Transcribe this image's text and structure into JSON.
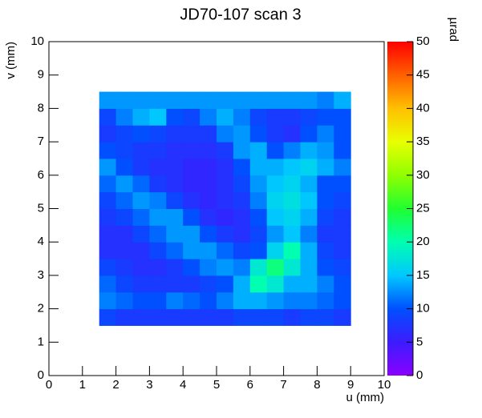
{
  "chart_data": {
    "type": "heatmap",
    "title": "JD70-107 scan 3",
    "x_label": "u (mm)",
    "y_label": "v (mm)",
    "z_label": "µrad",
    "xlim": [
      0,
      10
    ],
    "xticks": [
      0,
      1,
      2,
      3,
      4,
      5,
      6,
      7,
      8,
      9,
      10
    ],
    "ylim": [
      0,
      10
    ],
    "yticks": [
      0,
      1,
      2,
      3,
      4,
      5,
      6,
      7,
      8,
      9,
      10
    ],
    "zlim": [
      0,
      50
    ],
    "zticks": [
      0,
      5,
      10,
      15,
      20,
      25,
      30,
      35,
      40,
      45,
      50
    ],
    "palette": [
      "#8a00ff",
      "#3c1cff",
      "#0050ff",
      "#00c8ff",
      "#00ffb0",
      "#20ff30",
      "#90ff00",
      "#e8ff00",
      "#ffc000",
      "#ff6000",
      "#ff0000"
    ],
    "xbins": [
      1.5,
      2.0,
      2.5,
      3.0,
      3.5,
      4.0,
      4.5,
      5.0,
      5.5,
      6.0,
      6.5,
      7.0,
      7.5,
      8.0,
      8.5,
      9.0
    ],
    "ybins": [
      1.5,
      2.0,
      2.5,
      3.0,
      3.5,
      4.0,
      4.5,
      5.0,
      5.5,
      6.0,
      6.5,
      7.0,
      7.5,
      8.0,
      8.5
    ],
    "z": [
      [
        9,
        8,
        8,
        8,
        8,
        8,
        8,
        8,
        9,
        9,
        9,
        8,
        9,
        9,
        8
      ],
      [
        12,
        11,
        10,
        10,
        12,
        11,
        10,
        12,
        14,
        14,
        13,
        12,
        12,
        11,
        10
      ],
      [
        11,
        9,
        8,
        8,
        8,
        8,
        9,
        10,
        14,
        20,
        18,
        14,
        14,
        12,
        10
      ],
      [
        9,
        8,
        7,
        7,
        8,
        10,
        12,
        13,
        12,
        18,
        22,
        18,
        14,
        10,
        9
      ],
      [
        7,
        7,
        7,
        9,
        11,
        13,
        13,
        11,
        9,
        10,
        16,
        20,
        14,
        9,
        8
      ],
      [
        7,
        7,
        9,
        11,
        13,
        13,
        10,
        8,
        7,
        9,
        13,
        15,
        12,
        8,
        8
      ],
      [
        8,
        9,
        11,
        13,
        13,
        10,
        7,
        6,
        7,
        10,
        15,
        16,
        14,
        9,
        8
      ],
      [
        9,
        11,
        13,
        12,
        9,
        7,
        6,
        7,
        8,
        12,
        16,
        17,
        15,
        10,
        9
      ],
      [
        11,
        13,
        11,
        8,
        7,
        6,
        6,
        7,
        9,
        13,
        15,
        16,
        14,
        10,
        10
      ],
      [
        13,
        10,
        8,
        7,
        7,
        6,
        6,
        7,
        10,
        14,
        14,
        15,
        16,
        14,
        12
      ],
      [
        10,
        9,
        8,
        8,
        7,
        7,
        7,
        8,
        13,
        14,
        10,
        12,
        14,
        13,
        10
      ],
      [
        8,
        9,
        10,
        9,
        8,
        8,
        8,
        12,
        13,
        10,
        8,
        7,
        10,
        12,
        10
      ],
      [
        9,
        12,
        14,
        15,
        10,
        9,
        12,
        14,
        12,
        9,
        8,
        8,
        9,
        10,
        10
      ],
      [
        13,
        13,
        13,
        13,
        13,
        13,
        13,
        13,
        13,
        13,
        13,
        13,
        13,
        12,
        14
      ]
    ]
  }
}
